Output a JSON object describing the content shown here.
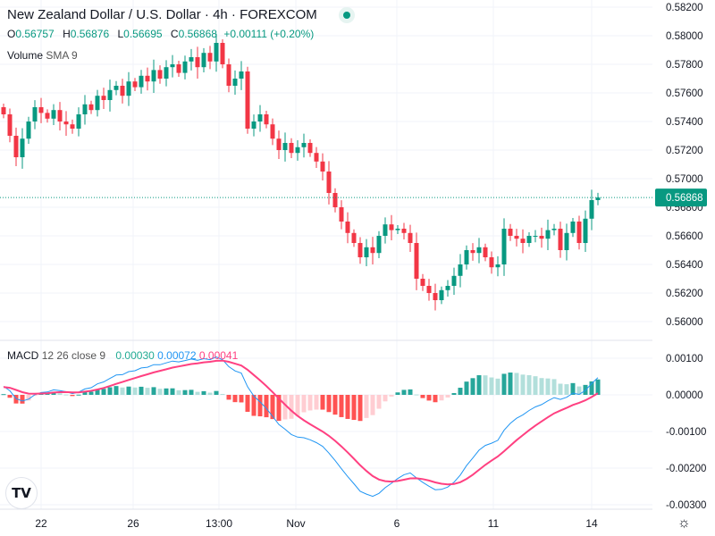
{
  "header": {
    "title": "New Zealand Dollar / U.S. Dollar · 4h · FOREXCOM",
    "ohlc": {
      "o_label": "O",
      "o": "0.56757",
      "h_label": "H",
      "h": "0.56876",
      "l_label": "L",
      "l": "0.56695",
      "c_label": "C",
      "c": "0.56868",
      "change": "+0.00111 (+0.20%)"
    },
    "volume_label": "Volume",
    "volume_sma": "SMA 9",
    "macd_label": "MACD",
    "macd_params": "12 26 close 9",
    "macd_hist": "0.00030",
    "macd_line": "0.00072",
    "macd_signal": "0.00041"
  },
  "logo": "TV",
  "colors": {
    "up": "#089981",
    "down": "#f23645",
    "macd": "#2962ff",
    "signal": "#ff4081",
    "grid": "#f0f3fa"
  },
  "chart_data": [
    {
      "type": "candlestick",
      "title": "NZD/USD 4h",
      "price_axis_ticks": [
        "0.58200",
        "0.58000",
        "0.57800",
        "0.57600",
        "0.57400",
        "0.57200",
        "0.57000",
        "0.56800",
        "0.56600",
        "0.56400",
        "0.56200",
        "0.56000"
      ],
      "ylim": [
        0.56,
        0.582
      ],
      "last_price": "0.56868",
      "x_ticks": [
        "22",
        "26",
        "13:00",
        "Nov",
        "6",
        "11",
        "14"
      ],
      "closes": [
        0.5745,
        0.573,
        0.5715,
        0.5728,
        0.574,
        0.575,
        0.5746,
        0.5742,
        0.5748,
        0.574,
        0.5738,
        0.5735,
        0.5745,
        0.5752,
        0.5748,
        0.5758,
        0.5755,
        0.5762,
        0.5765,
        0.5758,
        0.5768,
        0.5764,
        0.5772,
        0.5768,
        0.5776,
        0.577,
        0.5778,
        0.578,
        0.5774,
        0.5782,
        0.5785,
        0.5778,
        0.5788,
        0.5782,
        0.5795,
        0.578,
        0.5765,
        0.577,
        0.5775,
        0.5735,
        0.574,
        0.5745,
        0.5738,
        0.5728,
        0.572,
        0.5725,
        0.5718,
        0.5722,
        0.5725,
        0.5718,
        0.5712,
        0.5705,
        0.569,
        0.568,
        0.567,
        0.5662,
        0.5655,
        0.5645,
        0.5652,
        0.5648,
        0.566,
        0.5668,
        0.5664,
        0.5665,
        0.5662,
        0.5655,
        0.563,
        0.5625,
        0.562,
        0.5615,
        0.5622,
        0.5625,
        0.5632,
        0.564,
        0.565,
        0.5648,
        0.5652,
        0.5645,
        0.5638,
        0.564,
        0.5665,
        0.566,
        0.5658,
        0.5655,
        0.566,
        0.566,
        0.5658,
        0.5664,
        0.5665,
        0.565,
        0.5662,
        0.567,
        0.5655,
        0.5672,
        0.5685,
        0.56868
      ]
    },
    {
      "type": "macd",
      "params": [
        12,
        26,
        9
      ],
      "axis_ticks": [
        "0.00100",
        "0.00000",
        "-0.00100",
        "-0.00200",
        "-0.00300"
      ],
      "ylim": [
        -0.0031,
        0.0014
      ]
    }
  ]
}
